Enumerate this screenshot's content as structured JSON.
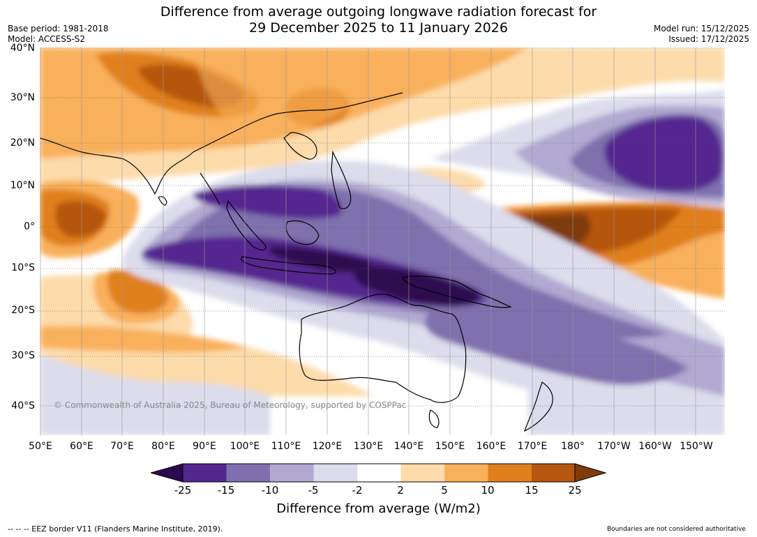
{
  "header": {
    "title_line1": "Difference from average outgoing longwave radiation forecast for",
    "title_line2": "29 December 2025 to 11 January 2026",
    "base_period": "Base period: 1981-2018",
    "model": "Model: ACCESS-S2",
    "model_run": "Model run: 15/12/2025",
    "issued": "Issued: 17/12/2025"
  },
  "map": {
    "lat_labels": [
      "40°N",
      "30°N",
      "20°N",
      "10°N",
      "0°",
      "10°S",
      "20°S",
      "30°S",
      "40°S"
    ],
    "lon_labels": [
      "50°E",
      "60°E",
      "70°E",
      "80°E",
      "90°E",
      "100°E",
      "110°E",
      "120°E",
      "130°E",
      "140°E",
      "150°E",
      "160°E",
      "170°E",
      "180°",
      "170°W",
      "160°W",
      "150°W"
    ],
    "copyright": "© Commonwealth of Australia 2025, Bureau of Meteorology, supported by COSPPac"
  },
  "colorbar": {
    "ticks": [
      "-25",
      "-15",
      "-10",
      "-5",
      "-2",
      "2",
      "5",
      "10",
      "15",
      "25"
    ],
    "label": "Difference from average (W/m2)",
    "colors": [
      "#2d0a4f",
      "#54278f",
      "#7f6fae",
      "#b1a9d1",
      "#dcdcec",
      "#ffffff",
      "#fddbaa",
      "#f9b05b",
      "#e0801d",
      "#b65610",
      "#7f3b08"
    ]
  },
  "footer": {
    "eez_note": "--  --  -- EEZ border V11 (Flanders Marine Institute, 2019).",
    "disclaimer": "Boundaries are not considered authoritative"
  }
}
